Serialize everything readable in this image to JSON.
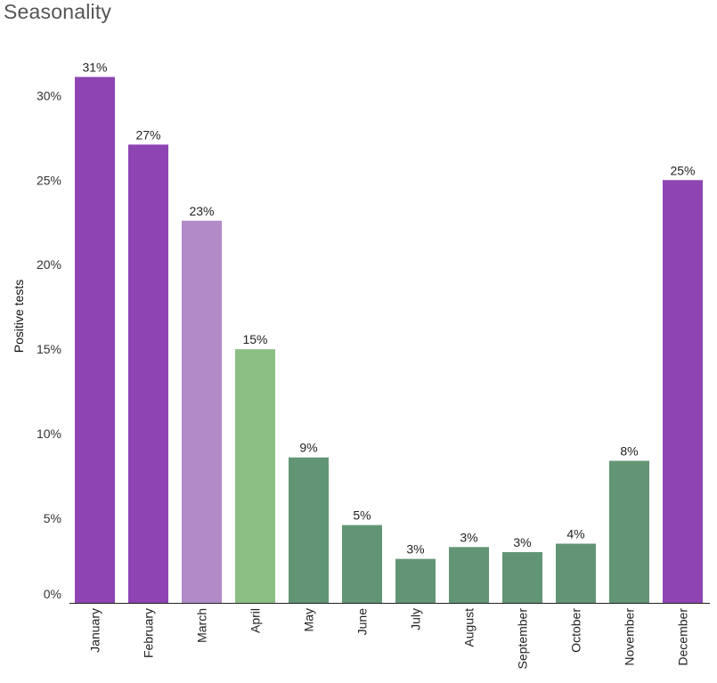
{
  "title": "Seasonality",
  "chart_data": {
    "type": "bar",
    "title": "Seasonality",
    "xlabel": "",
    "ylabel": "Positive tests",
    "ylim": [
      0,
      0.3
    ],
    "yticks": [
      0,
      0.05,
      0.1,
      0.15,
      0.2,
      0.25,
      0.3
    ],
    "ytick_labels": [
      "0%",
      "5%",
      "10%",
      "15%",
      "20%",
      "25%",
      "30%"
    ],
    "grid": false,
    "categories": [
      "January",
      "February",
      "March",
      "April",
      "May",
      "June",
      "July",
      "August",
      "September",
      "October",
      "November",
      "December"
    ],
    "values": [
      0.311,
      0.271,
      0.226,
      0.15,
      0.086,
      0.046,
      0.026,
      0.033,
      0.03,
      0.035,
      0.084,
      0.25
    ],
    "data_labels": [
      "31%",
      "27%",
      "23%",
      "15%",
      "9%",
      "5%",
      "3%",
      "3%",
      "3%",
      "4%",
      "8%",
      "25%"
    ],
    "colors": [
      "#8e44b2",
      "#8e44b2",
      "#b28ac8",
      "#8cbf84",
      "#629574",
      "#629574",
      "#629574",
      "#629574",
      "#629574",
      "#629574",
      "#629574",
      "#8e44b2"
    ]
  }
}
